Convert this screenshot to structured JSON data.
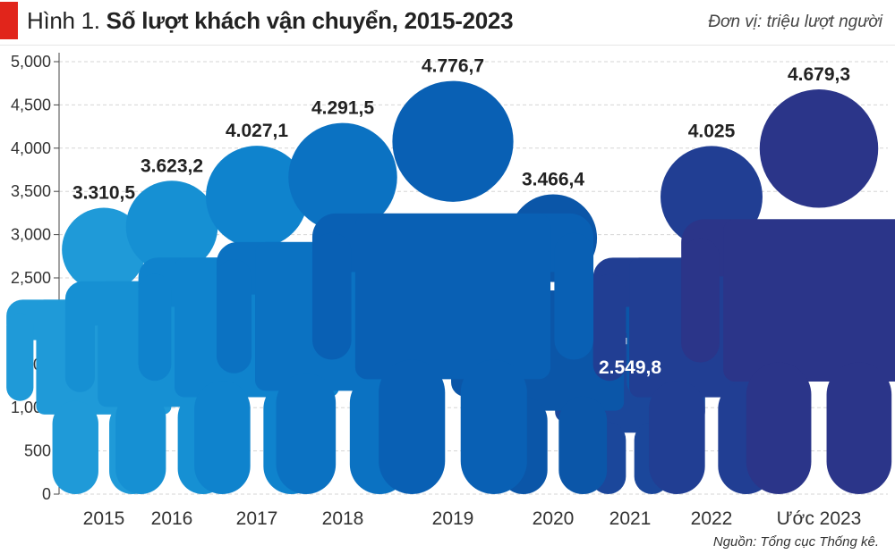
{
  "header": {
    "title_prefix": "Hình 1.",
    "title": "Số lượt khách vận chuyển, 2015-2023",
    "unit": "Đơn vị: triệu lượt người"
  },
  "source": "Nguồn: Tổng cục Thống kê.",
  "colors": {
    "accent": "#e1251b",
    "series": [
      "#1f9ad8",
      "#1690d3",
      "#0f83cd",
      "#0b72c2",
      "#0960b4",
      "#0b56a8",
      "#1b479b",
      "#213e93",
      "#2b3589"
    ],
    "label_dark": "#222222",
    "label_light": "#ffffff"
  },
  "chart_data": {
    "type": "bar",
    "categories": [
      "2015",
      "2016",
      "2017",
      "2018",
      "2019",
      "2020",
      "2021",
      "2022",
      "Ước 2023"
    ],
    "values": [
      3310.5,
      3623.2,
      4027.1,
      4291.5,
      4776.7,
      3466.4,
      2549.8,
      4025,
      4679.3
    ],
    "value_labels": [
      "3.310,5",
      "3.623,2",
      "4.027,1",
      "4.291,5",
      "4.776,7",
      "3.466,4",
      "2.549,8",
      "4.025",
      "4.679,3"
    ],
    "ylim": [
      0,
      5000
    ],
    "yticks": [
      0,
      500,
      1000,
      1500,
      2000,
      2500,
      3000,
      3500,
      4000,
      4500,
      5000
    ],
    "ytick_labels": [
      "0",
      "500",
      "1,000",
      "1,500",
      "2,000",
      "2,500",
      "3,000",
      "3,500",
      "4,000",
      "4,500",
      "5,000"
    ],
    "grid": true,
    "mark_style": "person-pictogram"
  }
}
